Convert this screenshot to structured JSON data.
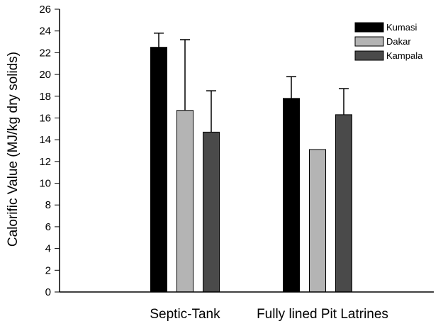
{
  "chart_data": {
    "type": "bar",
    "ylabel": "Calorific Value (MJ/kg dry solids)",
    "xlabel": "",
    "ylim": [
      0,
      26
    ],
    "yticks": [
      0,
      2,
      4,
      6,
      8,
      10,
      12,
      14,
      16,
      18,
      20,
      22,
      24,
      26
    ],
    "categories": [
      "Septic-Tank",
      "Fully lined Pit Latrines"
    ],
    "series": [
      {
        "name": "Kumasi",
        "color": "#000000",
        "values": [
          22.5,
          17.8
        ],
        "error_upper": [
          23.8,
          19.8
        ]
      },
      {
        "name": "Dakar",
        "color": "#b4b4b4",
        "values": [
          16.7,
          13.1
        ],
        "error_upper": [
          23.2,
          null
        ]
      },
      {
        "name": "Kampala",
        "color": "#4a4a4a",
        "values": [
          14.7,
          16.3
        ],
        "error_upper": [
          18.5,
          18.7
        ]
      }
    ],
    "legend_position": "top-right",
    "grid": false
  }
}
